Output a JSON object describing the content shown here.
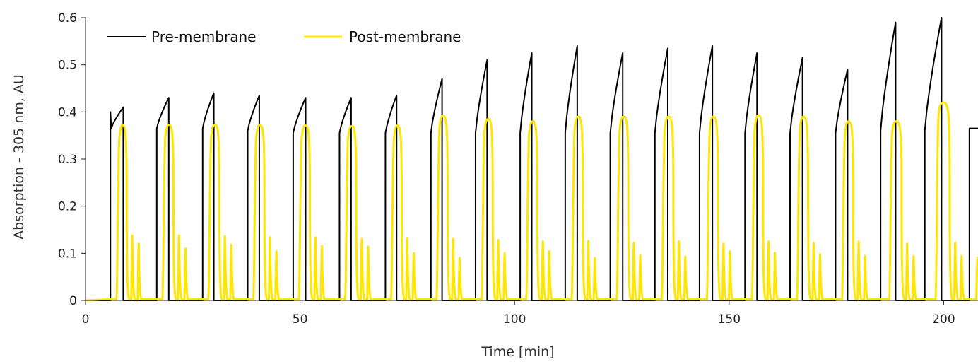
{
  "chart_data": {
    "type": "line",
    "title": "",
    "xlabel": "Time [min]",
    "ylabel": "Absorption - 305 nm, AU",
    "xlim": [
      0,
      208
    ],
    "ylim": [
      0,
      0.6
    ],
    "x_ticks": [
      "0",
      "50",
      "100",
      "150",
      "200"
    ],
    "y_ticks": [
      "0",
      "0.1",
      "0.2",
      "0.3",
      "0.4",
      "0.5",
      "0.6"
    ],
    "grid": false,
    "legend_position": "top-left",
    "series": [
      {
        "name": "Pre-membrane",
        "color": "#000000",
        "pulses": [
          {
            "start": 5.8,
            "end": 8.8,
            "low": 0.365,
            "high": 0.41,
            "initial_spike": 0.4
          },
          {
            "start": 16.6,
            "end": 19.4,
            "low": 0.365,
            "high": 0.43
          },
          {
            "start": 27.3,
            "end": 29.9,
            "low": 0.365,
            "high": 0.44
          },
          {
            "start": 37.8,
            "end": 40.5,
            "low": 0.36,
            "high": 0.435
          },
          {
            "start": 48.4,
            "end": 51.3,
            "low": 0.355,
            "high": 0.43
          },
          {
            "start": 59.2,
            "end": 61.9,
            "low": 0.355,
            "high": 0.43
          },
          {
            "start": 69.9,
            "end": 72.5,
            "low": 0.355,
            "high": 0.435
          },
          {
            "start": 80.5,
            "end": 83.1,
            "low": 0.355,
            "high": 0.47
          },
          {
            "start": 90.9,
            "end": 93.6,
            "low": 0.355,
            "high": 0.51
          },
          {
            "start": 101.3,
            "end": 104.0,
            "low": 0.355,
            "high": 0.525
          },
          {
            "start": 111.8,
            "end": 114.6,
            "low": 0.355,
            "high": 0.54
          },
          {
            "start": 122.3,
            "end": 125.2,
            "low": 0.355,
            "high": 0.525
          },
          {
            "start": 132.7,
            "end": 135.7,
            "low": 0.355,
            "high": 0.535
          },
          {
            "start": 143.1,
            "end": 146.1,
            "low": 0.355,
            "high": 0.54
          },
          {
            "start": 153.7,
            "end": 156.5,
            "low": 0.355,
            "high": 0.525
          },
          {
            "start": 164.2,
            "end": 167.1,
            "low": 0.355,
            "high": 0.515
          },
          {
            "start": 174.8,
            "end": 177.6,
            "low": 0.355,
            "high": 0.49
          },
          {
            "start": 185.3,
            "end": 188.8,
            "low": 0.36,
            "high": 0.59
          },
          {
            "start": 195.6,
            "end": 199.5,
            "low": 0.36,
            "high": 0.6
          },
          {
            "start": 206.0,
            "end": 208.0,
            "low": 0.365,
            "high": 0.365
          }
        ]
      },
      {
        "name": "Post-membrane",
        "color": "#FFE600",
        "pulses": [
          {
            "rise": 7.5,
            "end": 9.6,
            "peak": 0.372,
            "spike1": 0.137,
            "spike2": 0.12
          },
          {
            "rise": 18.2,
            "end": 20.5,
            "peak": 0.373,
            "spike1": 0.138,
            "spike2": 0.11
          },
          {
            "rise": 28.9,
            "end": 31.2,
            "peak": 0.373,
            "spike1": 0.136,
            "spike2": 0.118
          },
          {
            "rise": 39.4,
            "end": 41.7,
            "peak": 0.372,
            "spike1": 0.134,
            "spike2": 0.104
          },
          {
            "rise": 50.0,
            "end": 52.3,
            "peak": 0.371,
            "spike1": 0.133,
            "spike2": 0.115
          },
          {
            "rise": 60.8,
            "end": 63.1,
            "peak": 0.37,
            "spike1": 0.13,
            "spike2": 0.114
          },
          {
            "rise": 71.5,
            "end": 73.7,
            "peak": 0.371,
            "spike1": 0.131,
            "spike2": 0.1
          },
          {
            "rise": 82.1,
            "end": 84.4,
            "peak": 0.392,
            "spike1": 0.13,
            "spike2": 0.09
          },
          {
            "rise": 92.6,
            "end": 94.9,
            "peak": 0.385,
            "spike1": 0.128,
            "spike2": 0.1
          },
          {
            "rise": 103.0,
            "end": 105.3,
            "peak": 0.38,
            "spike1": 0.125,
            "spike2": 0.104
          },
          {
            "rise": 113.6,
            "end": 115.9,
            "peak": 0.39,
            "spike1": 0.126,
            "spike2": 0.09
          },
          {
            "rise": 124.1,
            "end": 126.5,
            "peak": 0.39,
            "spike1": 0.122,
            "spike2": 0.095
          },
          {
            "rise": 134.6,
            "end": 137.0,
            "peak": 0.39,
            "spike1": 0.125,
            "spike2": 0.093
          },
          {
            "rise": 145.1,
            "end": 147.4,
            "peak": 0.39,
            "spike1": 0.12,
            "spike2": 0.104
          },
          {
            "rise": 155.6,
            "end": 157.9,
            "peak": 0.393,
            "spike1": 0.125,
            "spike2": 0.1
          },
          {
            "rise": 166.1,
            "end": 168.4,
            "peak": 0.39,
            "spike1": 0.122,
            "spike2": 0.098
          },
          {
            "rise": 176.6,
            "end": 178.9,
            "peak": 0.38,
            "spike1": 0.125,
            "spike2": 0.094
          },
          {
            "rise": 187.6,
            "end": 190.2,
            "peak": 0.38,
            "spike1": 0.12,
            "spike2": 0.094
          },
          {
            "rise": 198.4,
            "end": 201.4,
            "peak": 0.42,
            "spike1": 0.122,
            "spike2": 0.094
          }
        ]
      }
    ]
  }
}
